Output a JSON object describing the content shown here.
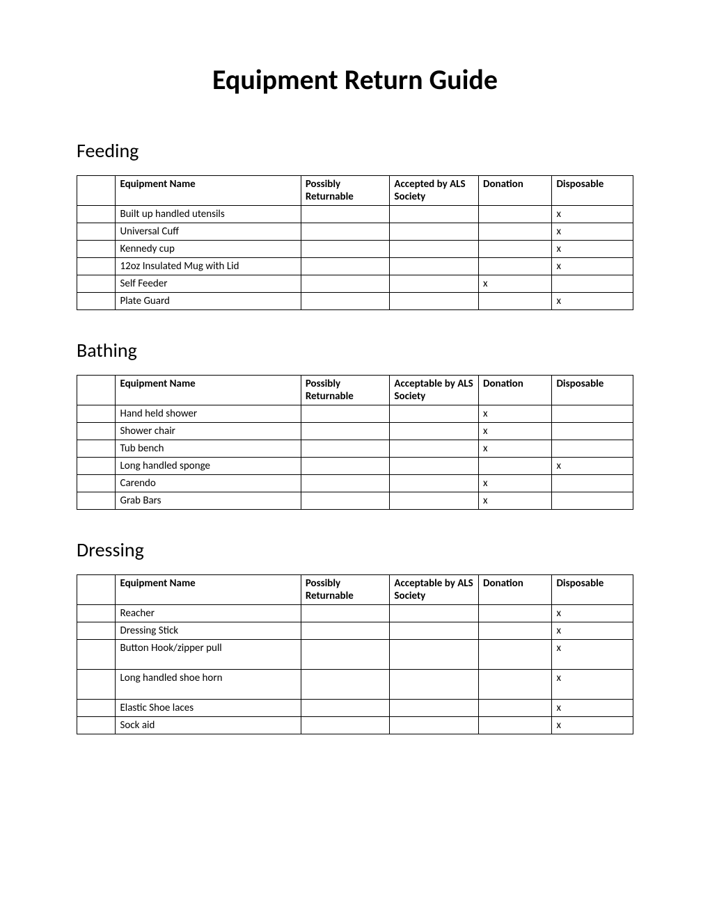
{
  "title": "Equipment Return Guide",
  "sections": [
    {
      "heading": "Feeding",
      "columns": [
        "",
        "Equipment Name",
        "Possibly Returnable",
        "Accepted by ALS Society",
        "Donation",
        "Disposable"
      ],
      "rows": [
        {
          "name": "Built up handled utensils",
          "possibly": "",
          "accepted": "",
          "donation": "",
          "disposable": "x"
        },
        {
          "name": "Universal Cuff",
          "possibly": "",
          "accepted": "",
          "donation": "",
          "disposable": "x"
        },
        {
          "name": "Kennedy cup",
          "possibly": "",
          "accepted": "",
          "donation": "",
          "disposable": "x"
        },
        {
          "name": "12oz Insulated Mug with Lid",
          "possibly": "",
          "accepted": "",
          "donation": "",
          "disposable": "x"
        },
        {
          "name": "Self Feeder",
          "possibly": "",
          "accepted": "",
          "donation": "x",
          "disposable": ""
        },
        {
          "name": "Plate Guard",
          "possibly": "",
          "accepted": "",
          "donation": "",
          "disposable": "x"
        }
      ]
    },
    {
      "heading": "Bathing",
      "columns": [
        "",
        "Equipment Name",
        "Possibly Returnable",
        "Acceptable by ALS Society",
        "Donation",
        "Disposable"
      ],
      "rows": [
        {
          "name": "Hand held shower",
          "possibly": "",
          "accepted": "",
          "donation": "x",
          "disposable": ""
        },
        {
          "name": "Shower chair",
          "possibly": "",
          "accepted": "",
          "donation": "x",
          "disposable": ""
        },
        {
          "name": "Tub bench",
          "possibly": "",
          "accepted": "",
          "donation": "x",
          "disposable": ""
        },
        {
          "name": "Long handled sponge",
          "possibly": "",
          "accepted": "",
          "donation": "",
          "disposable": "x"
        },
        {
          "name": "Carendo",
          "possibly": "",
          "accepted": "",
          "donation": "x",
          "disposable": ""
        },
        {
          "name": "Grab Bars",
          "possibly": "",
          "accepted": "",
          "donation": "x",
          "disposable": ""
        }
      ]
    },
    {
      "heading": "Dressing",
      "columns": [
        "",
        "Equipment Name",
        "Possibly Returnable",
        "Acceptable by ALS Society",
        "Donation",
        "Disposable"
      ],
      "rows": [
        {
          "name": "Reacher",
          "possibly": "",
          "accepted": "",
          "donation": "",
          "disposable": "x"
        },
        {
          "name": "Dressing Stick",
          "possibly": "",
          "accepted": "",
          "donation": "",
          "disposable": "x"
        },
        {
          "name": "Button Hook/zipper pull",
          "possibly": "",
          "accepted": "",
          "donation": "",
          "disposable": "x",
          "tall": true
        },
        {
          "name": "Long handled shoe horn",
          "possibly": "",
          "accepted": "",
          "donation": "",
          "disposable": "x",
          "tall": true
        },
        {
          "name": "Elastic Shoe laces",
          "possibly": "",
          "accepted": "",
          "donation": "",
          "disposable": "x"
        },
        {
          "name": "Sock aid",
          "possibly": "",
          "accepted": "",
          "donation": "",
          "disposable": "x"
        }
      ]
    }
  ]
}
